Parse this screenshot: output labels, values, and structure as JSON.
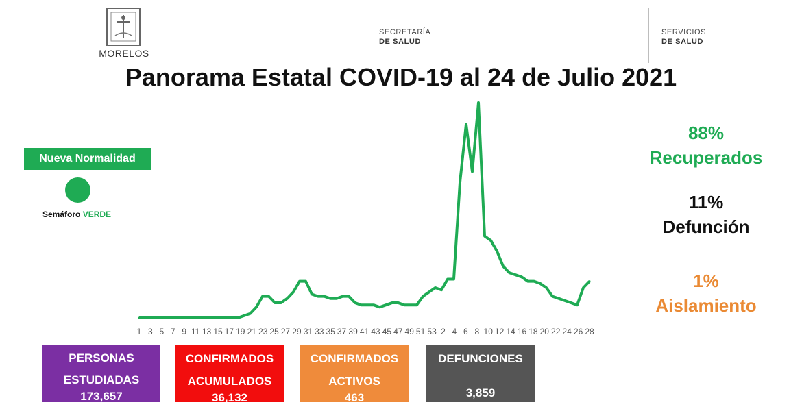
{
  "header": {
    "state_name": "MORELOS",
    "secretaria_line1": "SECRETARÍA",
    "secretaria_line2": "DE SALUD",
    "servicios_line1": "SERVICIOS",
    "servicios_line2": "DE SALUD",
    "title": "Panorama Estatal COVID-19 al 24 de Julio 2021"
  },
  "semaforo": {
    "badge": "Nueva Normalidad",
    "label": "Semáforo",
    "value": "VERDE",
    "color": "#1fab54"
  },
  "stats": {
    "recuperados_pct": "88%",
    "recuperados_label": "Recuperados",
    "defuncion_pct": "11%",
    "defuncion_label": "Defunción",
    "aislamiento_pct": "1%",
    "aislamiento_label": "Aislamiento"
  },
  "boxes": [
    {
      "label1": "PERSONAS",
      "label2": "ESTUDIADAS",
      "value": "173,657",
      "color": "#7b2fa3"
    },
    {
      "label1": "CONFIRMADOS",
      "label2": "ACUMULADOS",
      "value": "36,132",
      "color": "#f20d0d"
    },
    {
      "label1": "CONFIRMADOS",
      "label2": "ACTIVOS",
      "value": "463",
      "color": "#ef8b3b"
    },
    {
      "label1": "DEFUNCIONES",
      "label2": "",
      "value": "3,859",
      "color": "#555555"
    }
  ],
  "chart_data": {
    "type": "line",
    "line_color": "#1fab54",
    "grid": false,
    "ylim": [
      0,
      100
    ],
    "tick_labels": [
      "1",
      "3",
      "5",
      "7",
      "9",
      "11",
      "13",
      "15",
      "17",
      "19",
      "21",
      "23",
      "25",
      "27",
      "29",
      "31",
      "33",
      "35",
      "37",
      "39",
      "41",
      "43",
      "45",
      "47",
      "49",
      "51",
      "53",
      "2",
      "4",
      "6",
      "8",
      "10",
      "12",
      "14",
      "16",
      "18",
      "20",
      "22",
      "24",
      "26",
      "28"
    ],
    "values": [
      0,
      0,
      0,
      0,
      0,
      0,
      0,
      0,
      0,
      0,
      0,
      0,
      0,
      0,
      0,
      0,
      0,
      1,
      2,
      5,
      10,
      10,
      7,
      7,
      9,
      12,
      17,
      17,
      11,
      10,
      10,
      9,
      9,
      10,
      10,
      7,
      6,
      6,
      6,
      5,
      6,
      7,
      7,
      6,
      6,
      6,
      10,
      12,
      14,
      13,
      18,
      18,
      63,
      90,
      68,
      100,
      38,
      36,
      31,
      24,
      21,
      20,
      19,
      17,
      17,
      16,
      14,
      10,
      9,
      8,
      7,
      6,
      14,
      17
    ]
  }
}
